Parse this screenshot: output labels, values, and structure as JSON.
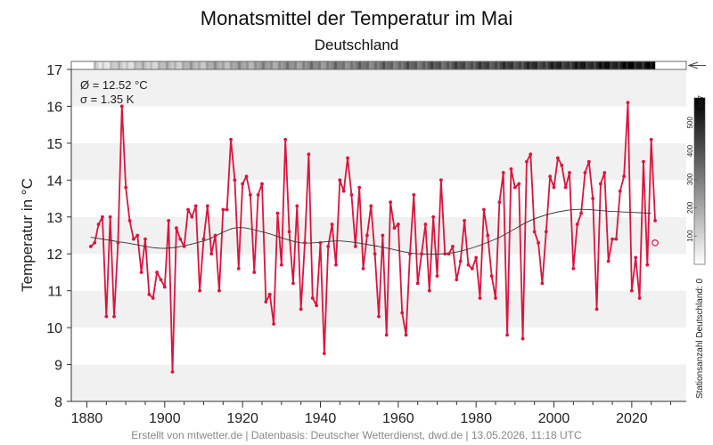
{
  "chart_data": {
    "type": "line",
    "title": "Monatsmittel der Temperatur im Mai",
    "subtitle": "Deutschland",
    "ylabel": "Temperatur in °C",
    "xlabel": "",
    "xlim": [
      1876,
      2034
    ],
    "ylim": [
      8,
      17
    ],
    "xticks": [
      1880,
      1900,
      1920,
      1940,
      1960,
      1980,
      2000,
      2020
    ],
    "yticks": [
      8,
      9,
      10,
      11,
      12,
      13,
      14,
      15,
      16,
      17
    ],
    "grid": "alternating horizontal bands",
    "stats": {
      "mean": "Ø = 12.52 °C",
      "sigma": "σ = 1.35 K"
    },
    "series": [
      {
        "color": "#dc143c",
        "x_start": 1881,
        "values": [
          12.2,
          12.3,
          12.8,
          13.0,
          10.3,
          13.0,
          10.3,
          12.3,
          16.0,
          13.8,
          12.9,
          12.4,
          12.5,
          11.5,
          12.4,
          10.9,
          10.8,
          11.5,
          11.3,
          11.1,
          12.9,
          8.8,
          12.7,
          12.4,
          12.2,
          13.2,
          13.0,
          13.3,
          11.0,
          12.4,
          13.3,
          12.0,
          12.5,
          11.0,
          13.2,
          13.2,
          15.1,
          14.0,
          11.6,
          13.9,
          14.1,
          13.6,
          11.5,
          13.6,
          13.9,
          10.7,
          10.9,
          10.1,
          13.1,
          11.7,
          15.1,
          12.6,
          11.2,
          13.3,
          10.5,
          12.3,
          14.7,
          10.8,
          10.6,
          12.3,
          9.3,
          12.2,
          12.8,
          11.7,
          14.0,
          13.7,
          14.6,
          13.6,
          12.2,
          13.8,
          11.6,
          12.5,
          13.3,
          12.0,
          10.3,
          12.5,
          9.8,
          13.4,
          12.7,
          12.8,
          10.4,
          9.8,
          12.0,
          13.6,
          11.2,
          12.0,
          12.8,
          11.0,
          13.0,
          11.4,
          14.0,
          12.0,
          12.0,
          12.2,
          11.3,
          11.8,
          12.9,
          11.7,
          11.6,
          11.9,
          10.8,
          13.2,
          12.5,
          11.4,
          10.8,
          13.4,
          14.2,
          9.8,
          14.3,
          13.8,
          13.9,
          9.7,
          14.5,
          14.7,
          12.6,
          12.3,
          11.2,
          12.6,
          14.1,
          13.8,
          14.6,
          14.4,
          13.8,
          14.2,
          11.6,
          12.8,
          13.1,
          14.2,
          14.5,
          13.5,
          10.5,
          13.9,
          14.2,
          11.8,
          12.4,
          12.4,
          13.7,
          14.1,
          16.1,
          11.0,
          11.9,
          10.8,
          14.5,
          11.7,
          15.1,
          12.9
        ]
      },
      {
        "color": "#333333",
        "x": [
          1881,
          1890,
          1900,
          1910,
          1918,
          1925,
          1935,
          1945,
          1955,
          1965,
          1975,
          1985,
          1995,
          2005,
          2015,
          2025
        ],
        "values": [
          12.45,
          12.3,
          12.15,
          12.35,
          12.7,
          12.6,
          12.3,
          12.35,
          12.2,
          12.0,
          12.05,
          12.4,
          12.95,
          13.2,
          13.15,
          13.1
        ]
      },
      {
        "color": "#dc143c",
        "x": [
          2026
        ],
        "values": [
          12.3
        ]
      }
    ],
    "station_count": {
      "label": "Stationsanzahl Deutschland: 0",
      "max_label": "587",
      "ticks": [
        "100",
        "200",
        "300",
        "400",
        "500"
      ]
    }
  },
  "footer": "Erstellt von mtwetter.de | Datenbasis: Deutscher Wetterdienst, dwd.de | 13.05.2026, 11:18 UTC"
}
